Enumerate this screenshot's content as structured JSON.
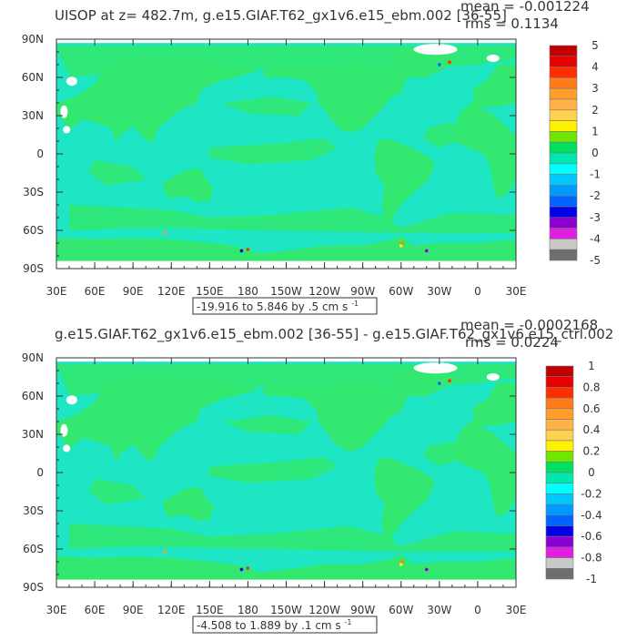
{
  "chart_data": [
    {
      "type": "heatmap",
      "title": "UISOP at z= 482.7m, g.e15.GIAF.T62_gx1v6.e15_ebm.002 [36-55]",
      "stats": {
        "mean": "mean = -0.001224",
        "rms": "rms = 0.1134"
      },
      "range_label": "-19.916 to 5.846 by .5 cm s",
      "range_units_exponent": "-1",
      "x_ticks": [
        "30E",
        "60E",
        "90E",
        "120E",
        "150E",
        "180",
        "150W",
        "120W",
        "90W",
        "60W",
        "30W",
        "0",
        "30E"
      ],
      "y_ticks": [
        "90N",
        "60N",
        "30N",
        "0",
        "30S",
        "60S",
        "90S"
      ],
      "colorbar": {
        "labels": [
          "5",
          "4",
          "3",
          "2",
          "1",
          "0",
          "-1",
          "-2",
          "-3",
          "-4",
          "-5"
        ],
        "colors": [
          "#c00000",
          "#e60000",
          "#ff2d00",
          "#ff7a1a",
          "#ff9e2a",
          "#ffb347",
          "#ffd24d",
          "#fff200",
          "#6ee600",
          "#00e060",
          "#00e8b0",
          "#00ffff",
          "#00c8ff",
          "#009aff",
          "#0064ff",
          "#0000e6",
          "#8a00d0",
          "#e020e0",
          "#c8c8c8",
          "#6e6e6e"
        ]
      },
      "map_colors": {
        "land": "#33e870",
        "ocean": "#1ee6c4",
        "ice": "#ffffff"
      }
    },
    {
      "type": "heatmap",
      "title": "g.e15.GIAF.T62_gx1v6.e15_ebm.002 [36-55] - g.e15.GIAF.T62_gx1v6.e15_ctrl.002",
      "stats": {
        "mean": "mean = -0.0002168",
        "rms": "rms = 0.0224"
      },
      "range_label": "-4.508 to 1.889 by .1 cm s",
      "range_units_exponent": "-1",
      "x_ticks": [
        "30E",
        "60E",
        "90E",
        "120E",
        "150E",
        "180",
        "150W",
        "120W",
        "90W",
        "60W",
        "30W",
        "0",
        "30E"
      ],
      "y_ticks": [
        "90N",
        "60N",
        "30N",
        "0",
        "30S",
        "60S",
        "90S"
      ],
      "colorbar": {
        "labels": [
          "1",
          "0.8",
          "0.6",
          "0.4",
          "0.2",
          "0",
          "-0.2",
          "-0.4",
          "-0.6",
          "-0.8",
          "-1"
        ],
        "colors": [
          "#c00000",
          "#e60000",
          "#ff2d00",
          "#ff7a1a",
          "#ff9e2a",
          "#ffb347",
          "#ffd24d",
          "#fff200",
          "#6ee600",
          "#00e060",
          "#00e8b0",
          "#00ffff",
          "#00c8ff",
          "#009aff",
          "#0064ff",
          "#0000e6",
          "#8a00d0",
          "#e020e0",
          "#c8c8c8",
          "#6e6e6e"
        ]
      },
      "map_colors": {
        "land": "#33e870",
        "ocean": "#1ee6c4",
        "ice": "#ffffff"
      }
    }
  ]
}
